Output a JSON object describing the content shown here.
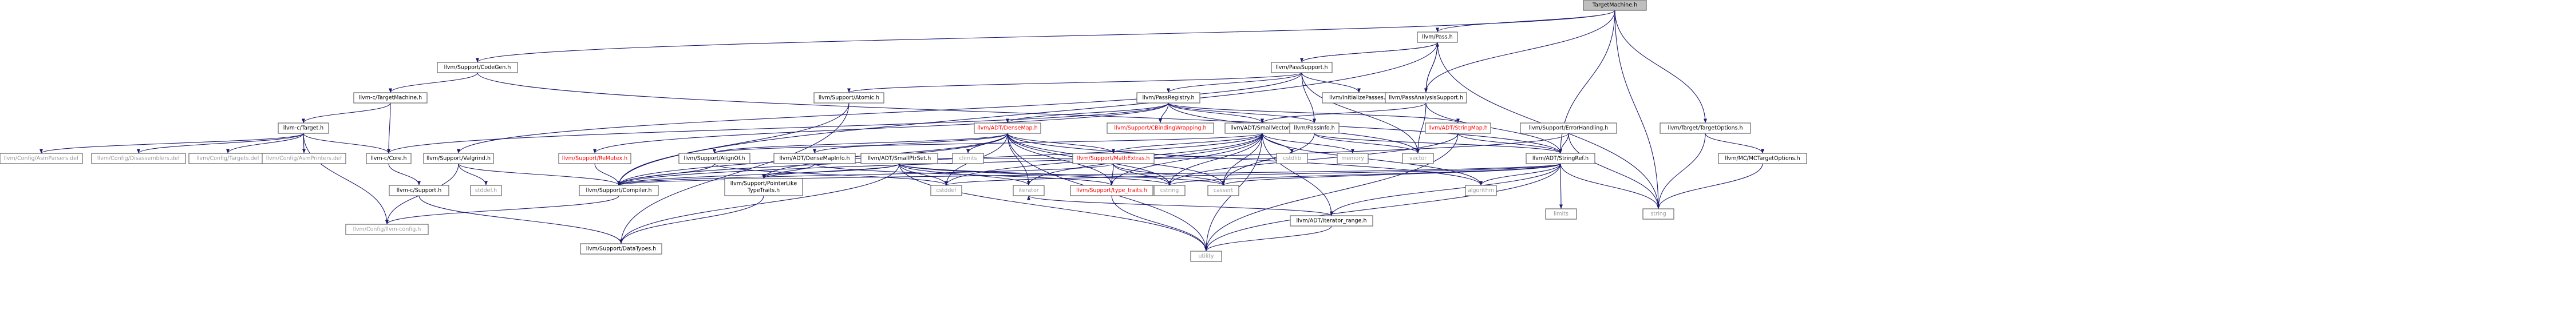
{
  "colors": {
    "edge": "#191970",
    "node_border": "#666666",
    "text_linked": "#000000",
    "text_external": "#999999",
    "text_red": "#ff0000",
    "root_fill": "#bfbfbf",
    "node_fill": "#ffffff"
  },
  "nodes": [
    {
      "id": "root",
      "label": "TargetMachine.h",
      "style": "root"
    },
    {
      "id": "pass",
      "label": "llvm/Pass.h",
      "style": "linked"
    },
    {
      "id": "codegen",
      "label": "llvm/Support/CodeGen.h",
      "style": "linked"
    },
    {
      "id": "passsupport",
      "label": "llvm/PassSupport.h",
      "style": "linked"
    },
    {
      "id": "ctm",
      "label": "llvm-c/TargetMachine.h",
      "style": "linked"
    },
    {
      "id": "atomic",
      "label": "llvm/Support/Atomic.h",
      "style": "linked"
    },
    {
      "id": "passreg",
      "label": "llvm/PassRegistry.h",
      "style": "linked"
    },
    {
      "id": "initpasses",
      "label": "llvm/InitializePasses.h",
      "style": "linked"
    },
    {
      "id": "passanalysis",
      "label": "llvm/PassAnalysisSupport.h",
      "style": "linked"
    },
    {
      "id": "targetopts",
      "label": "llvm/Target/TargetOptions.h",
      "style": "linked"
    },
    {
      "id": "ctarget",
      "label": "llvm-c/Target.h",
      "style": "linked"
    },
    {
      "id": "densemap",
      "label": "llvm/ADT/DenseMap.h",
      "style": "red"
    },
    {
      "id": "cbinding",
      "label": "llvm/Support/CBindingWrapping.h",
      "style": "red"
    },
    {
      "id": "smallvector",
      "label": "llvm/ADT/SmallVector.h",
      "style": "linked"
    },
    {
      "id": "passinfo",
      "label": "llvm/PassInfo.h",
      "style": "linked"
    },
    {
      "id": "stringmap",
      "label": "llvm/ADT/StringMap.h",
      "style": "red"
    },
    {
      "id": "errorhandling",
      "label": "llvm/Support/ErrorHandling.h",
      "style": "linked"
    },
    {
      "id": "mctargetopts",
      "label": "llvm/MC/MCTargetOptions.h",
      "style": "linked"
    },
    {
      "id": "asmparsers",
      "label": "llvm/Config/AsmParsers.def",
      "style": "external"
    },
    {
      "id": "disassemblers",
      "label": "llvm/Config/Disassemblers.def",
      "style": "external"
    },
    {
      "id": "targetsdef",
      "label": "llvm/Config/Targets.def",
      "style": "external"
    },
    {
      "id": "asmprinters",
      "label": "llvm/Config/AsmPrinters.def",
      "style": "external"
    },
    {
      "id": "ccore",
      "label": "llvm-c/Core.h",
      "style": "linked"
    },
    {
      "id": "valgrind",
      "label": "llvm/Support/Valgrind.h",
      "style": "linked"
    },
    {
      "id": "remutex",
      "label": "llvm/Support/ReMutex.h",
      "style": "red"
    },
    {
      "id": "alignof",
      "label": "llvm/Support/AlignOf.h",
      "style": "linked"
    },
    {
      "id": "densemapinfo",
      "label": "llvm/ADT/DenseMapInfo.h",
      "style": "linked"
    },
    {
      "id": "smallptrset",
      "label": "llvm/ADT/SmallPtrSet.h",
      "style": "linked"
    },
    {
      "id": "climits",
      "label": "climits",
      "style": "external"
    },
    {
      "id": "mathextras",
      "label": "llvm/Support/MathExtras.h",
      "style": "red"
    },
    {
      "id": "cstdlib",
      "label": "cstdlib",
      "style": "external"
    },
    {
      "id": "memory",
      "label": "memory",
      "style": "external"
    },
    {
      "id": "vector",
      "label": "vector",
      "style": "external"
    },
    {
      "id": "stringref",
      "label": "llvm/ADT/StringRef.h",
      "style": "linked"
    },
    {
      "id": "string",
      "label": "string",
      "style": "external"
    },
    {
      "id": "csupport",
      "label": "llvm-c/Support.h",
      "style": "linked"
    },
    {
      "id": "stddefh",
      "label": "stddef.h",
      "style": "external"
    },
    {
      "id": "compiler",
      "label": "llvm/Support/Compiler.h",
      "style": "linked"
    },
    {
      "id": "ptrlike",
      "label": "llvm/Support/PointerLike\nTypeTraits.h",
      "style": "linked"
    },
    {
      "id": "cstddef",
      "label": "cstddef",
      "style": "external"
    },
    {
      "id": "iterator",
      "label": "iterator",
      "style": "external"
    },
    {
      "id": "typetraits",
      "label": "llvm/Support/type_traits.h",
      "style": "red"
    },
    {
      "id": "cstring",
      "label": "cstring",
      "style": "external"
    },
    {
      "id": "cassert",
      "label": "cassert",
      "style": "external"
    },
    {
      "id": "algorithm",
      "label": "algorithm",
      "style": "external"
    },
    {
      "id": "iterrange",
      "label": "llvm/ADT/iterator_range.h",
      "style": "linked"
    },
    {
      "id": "limits",
      "label": "limits",
      "style": "external"
    },
    {
      "id": "llvmconfig",
      "label": "llvm/Config/llvm-config.h",
      "style": "external"
    },
    {
      "id": "datatypes",
      "label": "llvm/Support/DataTypes.h",
      "style": "linked"
    },
    {
      "id": "utility",
      "label": "utility",
      "style": "external"
    }
  ],
  "edges": [
    [
      "root",
      "pass"
    ],
    [
      "root",
      "codegen"
    ],
    [
      "root",
      "stringref"
    ],
    [
      "root",
      "targetopts"
    ],
    [
      "root",
      "string"
    ],
    [
      "root",
      "passanalysis"
    ],
    [
      "pass",
      "passsupport"
    ],
    [
      "pass",
      "compiler"
    ],
    [
      "pass",
      "string"
    ],
    [
      "pass",
      "passanalysis"
    ],
    [
      "passsupport",
      "pass"
    ],
    [
      "passsupport",
      "atomic"
    ],
    [
      "passsupport",
      "passreg"
    ],
    [
      "passsupport",
      "initpasses"
    ],
    [
      "passsupport",
      "passinfo"
    ],
    [
      "passsupport",
      "valgrind"
    ],
    [
      "passsupport",
      "vector"
    ],
    [
      "codegen",
      "ctm"
    ],
    [
      "codegen",
      "stringref"
    ],
    [
      "ctm",
      "ctarget"
    ],
    [
      "ctm",
      "ccore"
    ],
    [
      "atomic",
      "compiler"
    ],
    [
      "atomic",
      "datatypes"
    ],
    [
      "passreg",
      "densemap"
    ],
    [
      "passreg",
      "cbinding"
    ],
    [
      "passreg",
      "smallvector"
    ],
    [
      "passreg",
      "stringmap"
    ],
    [
      "passreg",
      "passinfo"
    ],
    [
      "passreg",
      "remutex"
    ],
    [
      "passreg",
      "ccore"
    ],
    [
      "passreg",
      "vector"
    ],
    [
      "passanalysis",
      "pass"
    ],
    [
      "passanalysis",
      "smallvector"
    ],
    [
      "passanalysis",
      "stringref"
    ],
    [
      "passanalysis",
      "vector"
    ],
    [
      "targetopts",
      "mctargetopts"
    ],
    [
      "targetopts",
      "string"
    ],
    [
      "mctargetopts",
      "string"
    ],
    [
      "ctarget",
      "asmparsers"
    ],
    [
      "ctarget",
      "disassemblers"
    ],
    [
      "ctarget",
      "targetsdef"
    ],
    [
      "ctarget",
      "asmprinters"
    ],
    [
      "ctarget",
      "ccore"
    ],
    [
      "ctarget",
      "llvmconfig"
    ],
    [
      "ccore",
      "csupport"
    ],
    [
      "csupport",
      "datatypes"
    ],
    [
      "valgrind",
      "llvmconfig"
    ],
    [
      "valgrind",
      "compiler"
    ],
    [
      "valgrind",
      "stddefh"
    ],
    [
      "densemap",
      "densemapinfo"
    ],
    [
      "densemap",
      "alignof"
    ],
    [
      "densemap",
      "compiler"
    ],
    [
      "densemap",
      "mathextras"
    ],
    [
      "densemap",
      "ptrlike"
    ],
    [
      "densemap",
      "typetraits"
    ],
    [
      "densemap",
      "algorithm"
    ],
    [
      "densemap",
      "cassert"
    ],
    [
      "densemap",
      "climits"
    ],
    [
      "densemap",
      "cstddef"
    ],
    [
      "densemap",
      "cstring"
    ],
    [
      "densemap",
      "iterator"
    ],
    [
      "densemap",
      "new"
    ],
    [
      "densemap",
      "utility"
    ],
    [
      "smallvector",
      "alignof"
    ],
    [
      "smallvector",
      "compiler"
    ],
    [
      "smallvector",
      "mathextras"
    ],
    [
      "smallvector",
      "typetraits"
    ],
    [
      "smallvector",
      "iterrange"
    ],
    [
      "smallvector",
      "algorithm"
    ],
    [
      "smallvector",
      "cassert"
    ],
    [
      "smallvector",
      "cstddef"
    ],
    [
      "smallvector",
      "cstdlib"
    ],
    [
      "smallvector",
      "cstring"
    ],
    [
      "smallvector",
      "memory"
    ],
    [
      "smallvector",
      "utility"
    ],
    [
      "smallvector",
      "iterator"
    ],
    [
      "passinfo",
      "stringref"
    ],
    [
      "passinfo",
      "cassert"
    ],
    [
      "passinfo",
      "vector"
    ],
    [
      "stringmap",
      "stringref"
    ],
    [
      "stringmap",
      "cstring"
    ],
    [
      "stringmap",
      "utility"
    ],
    [
      "errorhandling",
      "stringref"
    ],
    [
      "errorhandling",
      "compiler"
    ],
    [
      "errorhandling",
      "string"
    ],
    [
      "stringref",
      "compiler"
    ],
    [
      "stringref",
      "iterrange"
    ],
    [
      "stringref",
      "algorithm"
    ],
    [
      "stringref",
      "cassert"
    ],
    [
      "stringref",
      "cstddef"
    ],
    [
      "stringref",
      "cstring"
    ],
    [
      "stringref",
      "limits"
    ],
    [
      "stringref",
      "string"
    ],
    [
      "stringref",
      "utility"
    ],
    [
      "smallptrset",
      "compiler"
    ],
    [
      "smallptrset",
      "datatypes"
    ],
    [
      "smallptrset",
      "ptrlike"
    ],
    [
      "smallptrset",
      "cassert"
    ],
    [
      "smallptrset",
      "cstddef"
    ],
    [
      "smallptrset",
      "cstring"
    ],
    [
      "smallptrset",
      "cstdlib"
    ],
    [
      "smallptrset",
      "iterator"
    ],
    [
      "smallptrset",
      "utility"
    ],
    [
      "densemapinfo",
      "ptrlike"
    ],
    [
      "densemapinfo",
      "typetraits"
    ],
    [
      "mathextras",
      "compiler"
    ],
    [
      "mathextras",
      "cassert"
    ],
    [
      "mathextras",
      "cstring"
    ],
    [
      "mathextras",
      "typetraits"
    ],
    [
      "alignof",
      "compiler"
    ],
    [
      "alignof",
      "cstddef"
    ],
    [
      "remutex",
      "compiler"
    ],
    [
      "typetraits",
      "utility"
    ],
    [
      "compiler",
      "llvmconfig"
    ],
    [
      "ptrlike",
      "datatypes"
    ],
    [
      "iterrange",
      "iterator"
    ],
    [
      "iterrange",
      "utility"
    ]
  ]
}
